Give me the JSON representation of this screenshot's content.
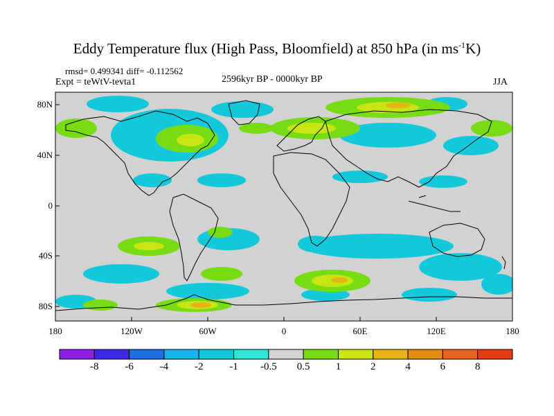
{
  "title_main": "Eddy Temperature flux (High Pass, Bloomfield) at 850 hPa (in ms",
  "title_sup": "-1",
  "title_end": "K)",
  "stats": "rmsd= 0.499341 diff= -0.112562",
  "expt": "Expt = teWtV-tevta1",
  "period": "2596kyr BP - 0000kyr BP",
  "season": "JJA",
  "lat_labels": [
    "80N",
    "40N",
    "0",
    "40S",
    "80S"
  ],
  "lon_labels": [
    "180",
    "120W",
    "60W",
    "0",
    "60E",
    "120E",
    "180"
  ],
  "colorbar": {
    "colors": [
      "#8c1ee6",
      "#3c28e6",
      "#1e6ee6",
      "#14b4ec",
      "#14c8dc",
      "#2ee6d2",
      "#d2d2d2",
      "#78dc14",
      "#c8e614",
      "#e6b414",
      "#e68c14",
      "#e6641e",
      "#e63c14"
    ],
    "labels": [
      "-8",
      "-6",
      "-4",
      "-2",
      "-1",
      "-0.5",
      "0.5",
      "1",
      "2",
      "4",
      "6",
      "8"
    ]
  },
  "field_colors": {
    "background": "#d2d2d2",
    "neg_weak": "#14c8dc",
    "neg_mid": "#14b4ec",
    "pos_weak": "#78dc14",
    "pos_mid": "#c8e614",
    "pos_strong": "#e6b414",
    "pos_max": "#e68c14"
  }
}
